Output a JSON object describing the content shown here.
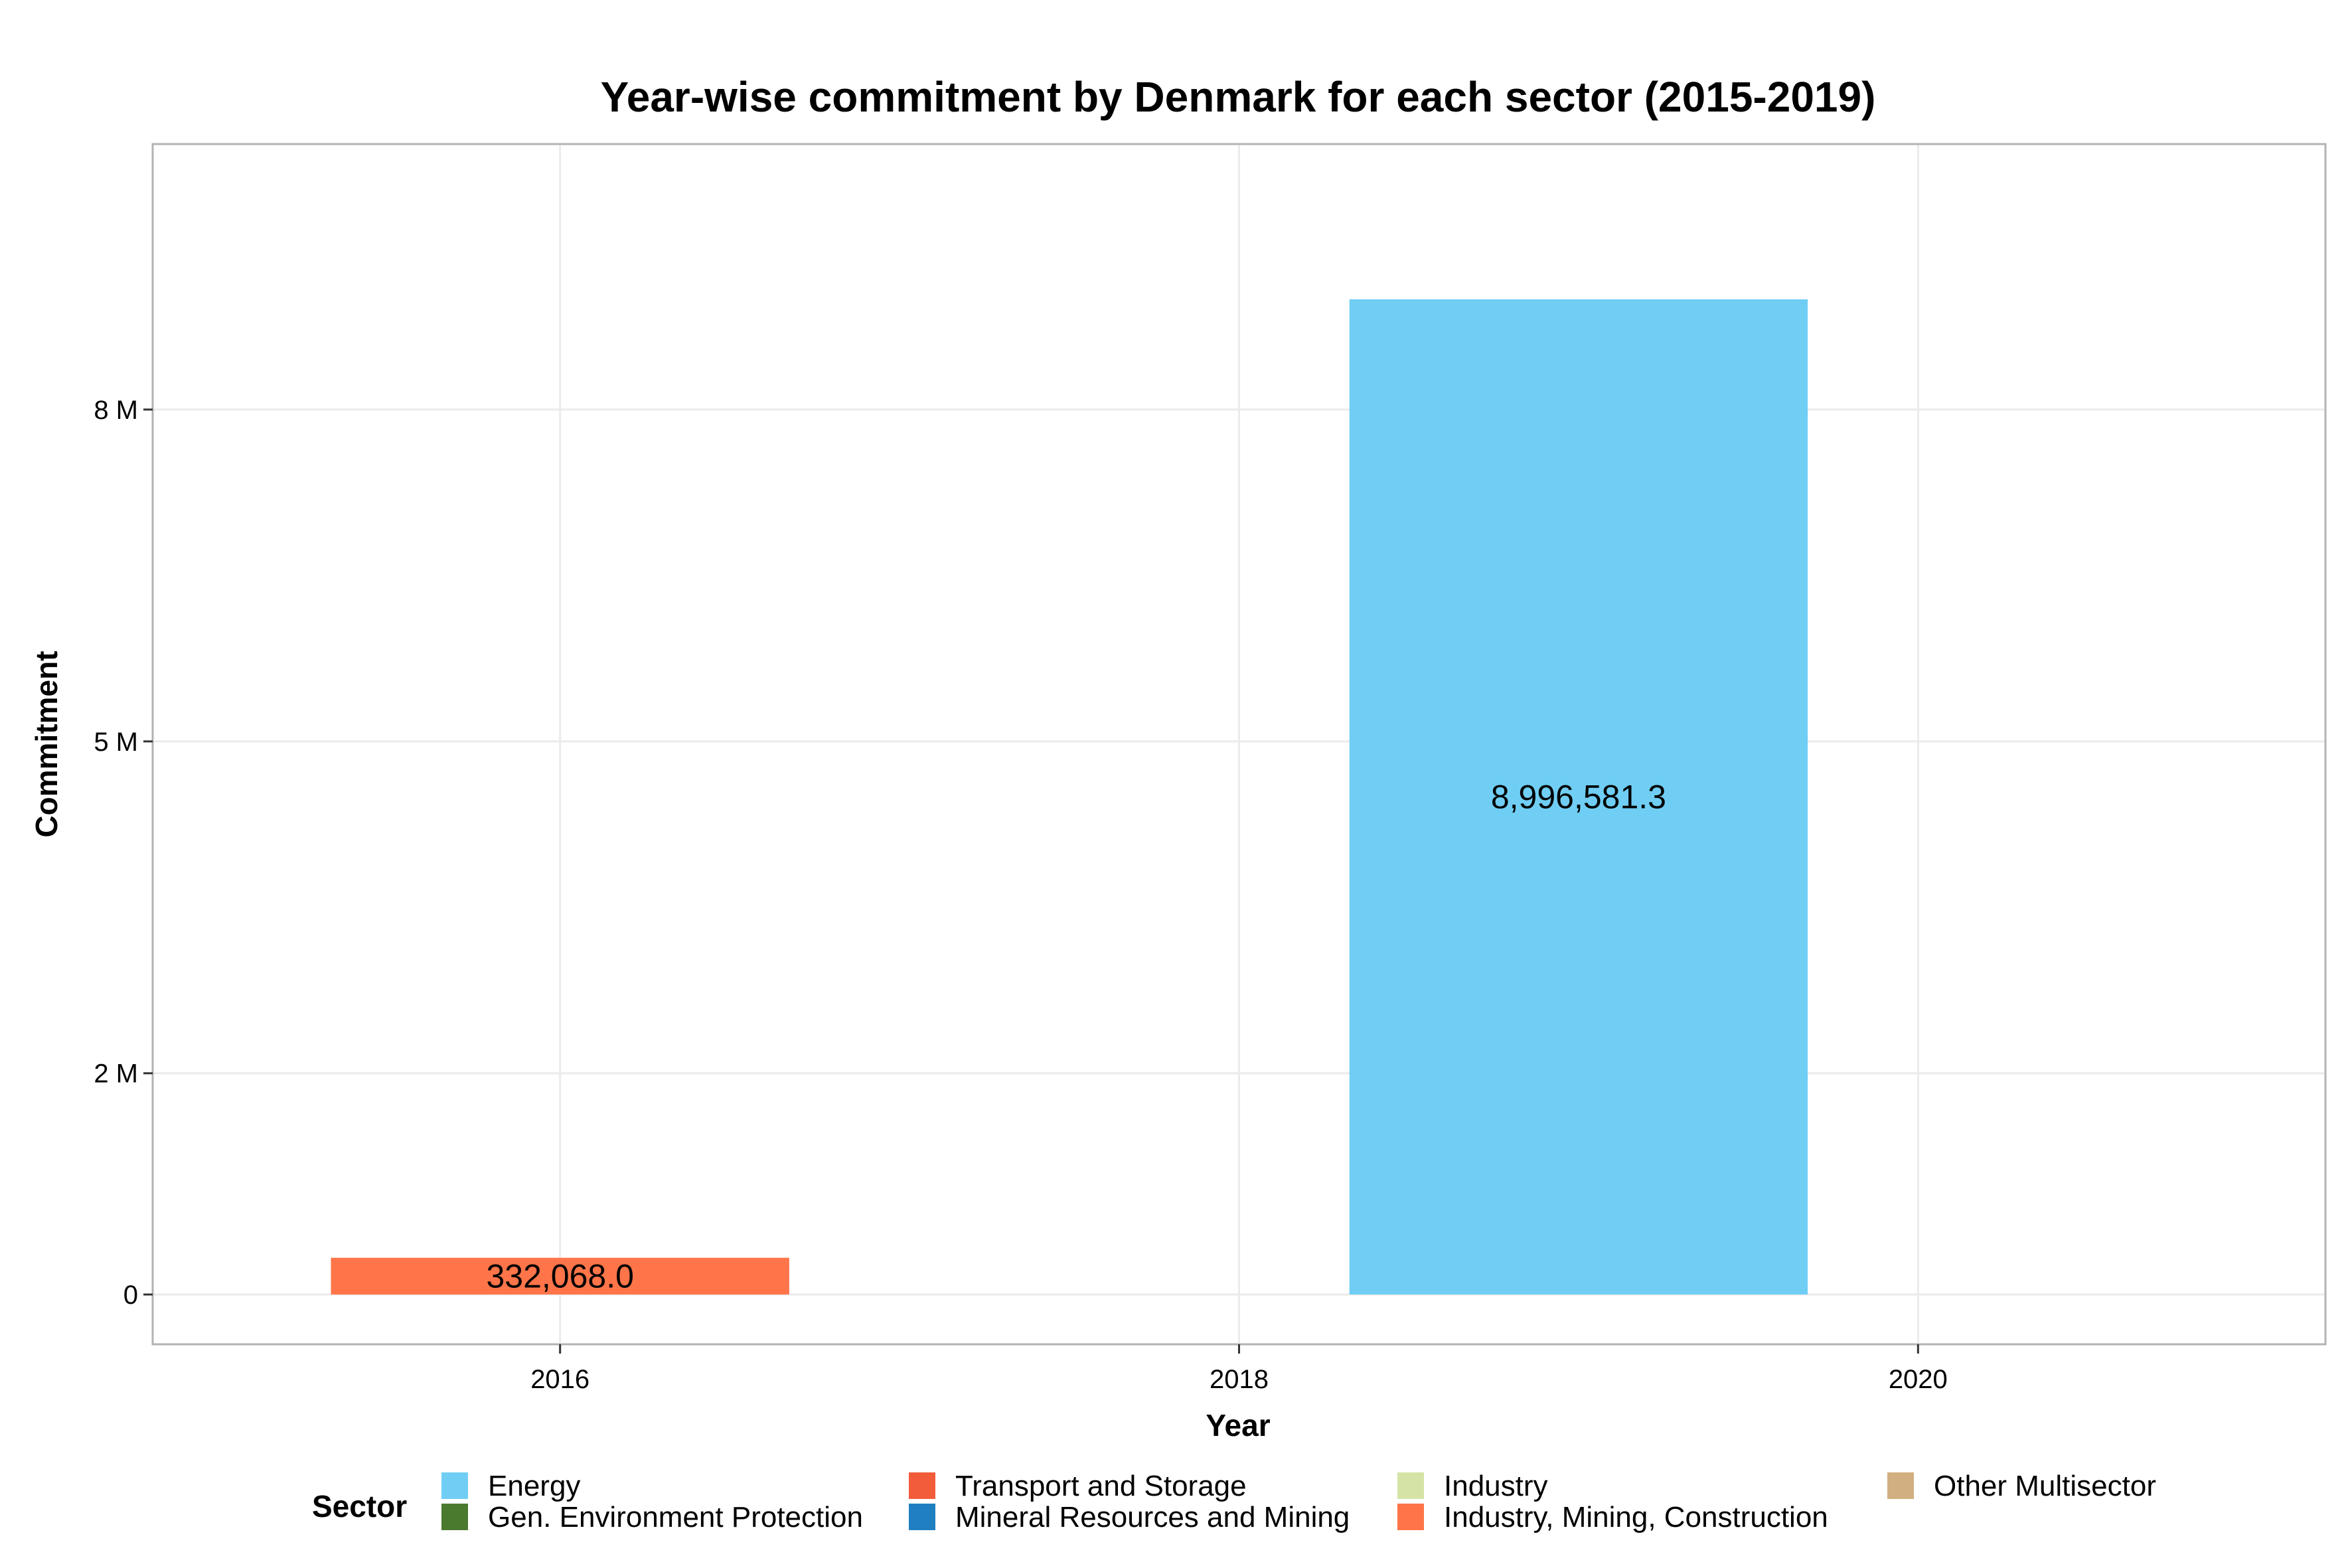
{
  "chart_data": {
    "type": "bar",
    "title": "Year-wise commitment by Denmark for each sector (2015-2019)",
    "xlabel": "Year",
    "ylabel": "Commitment",
    "x_ticks": [
      2016,
      2018,
      2020
    ],
    "x_tick_labels": [
      "2016",
      "2018",
      "2020"
    ],
    "xlim": [
      2014.8,
      2021.2
    ],
    "y_ticks": [
      0,
      2000000,
      5000000,
      8000000
    ],
    "y_tick_labels": [
      "0",
      "2 M",
      "5 M",
      "8 M"
    ],
    "ylim": [
      -450000,
      10400000
    ],
    "grid": true,
    "bars": [
      {
        "year": 2016,
        "sector": "Industry, Mining, Construction",
        "value": 332068.0,
        "label": "332,068.0"
      },
      {
        "year": 2019,
        "sector": "Energy",
        "value": 8996581.3,
        "label": "8,996,581.3"
      }
    ],
    "legend": {
      "title": "Sector",
      "position": "bottom",
      "entries": [
        {
          "name": "Energy",
          "color": "#70CEF4"
        },
        {
          "name": "Gen. Environment Protection",
          "color": "#4A7A2E"
        },
        {
          "name": "Transport and Storage",
          "color": "#F25C3A"
        },
        {
          "name": "Mineral Resources and Mining",
          "color": "#1F7FC0"
        },
        {
          "name": "Industry",
          "color": "#D6E3A6"
        },
        {
          "name": "Industry, Mining, Construction",
          "color": "#FF7549"
        },
        {
          "name": "Other Multisector",
          "color": "#D2AF80"
        }
      ]
    }
  }
}
